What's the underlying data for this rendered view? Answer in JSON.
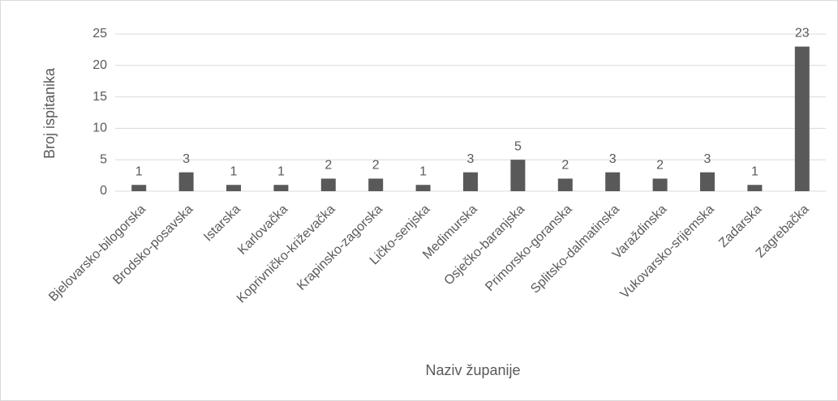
{
  "chart_data": {
    "type": "bar",
    "categories": [
      "Bjelovarsko-bilogorska",
      "Brodsko-posavska",
      "Istarska",
      "Karlovačka",
      "Koprivničko-križevačka",
      "Krapinsko-zagorska",
      "Ličko-senjska",
      "Medimurska",
      "Osječko-baranjska",
      "Primorsko-goranska",
      "Splitsko-dalmatinska",
      "Varaždinska",
      "Vukovarsko-srijemska",
      "Zadarska",
      "Zagrebačka"
    ],
    "values": [
      1,
      3,
      1,
      1,
      2,
      2,
      1,
      3,
      5,
      2,
      3,
      2,
      3,
      1,
      23
    ],
    "color": "#595959",
    "xlabel": "Naziv županije",
    "ylabel": "Broj ispitanika",
    "ylim": [
      0,
      25
    ],
    "yticks": [
      0,
      5,
      10,
      15,
      20,
      25
    ],
    "grid": true
  }
}
